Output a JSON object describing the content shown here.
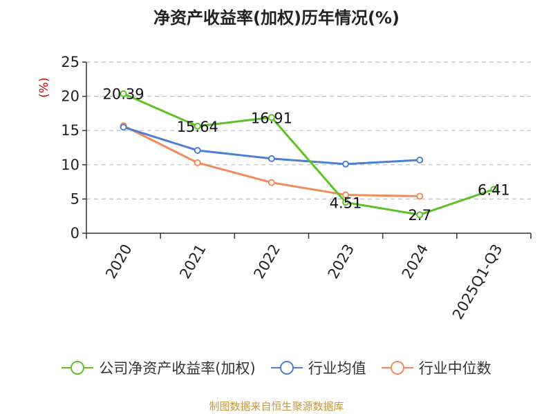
{
  "title": "净资产收益率(加权)历年情况(%)",
  "footer": "制图数据来自恒生聚源数据库",
  "chart_data": {
    "type": "line",
    "title": "净资产收益率(加权)历年情况(%)",
    "ylabel": "(%)",
    "xlabel": "",
    "ylim": [
      0,
      25
    ],
    "yticks": [
      0,
      5,
      10,
      15,
      20,
      25
    ],
    "grid": true,
    "legend_position": "bottom",
    "categories": [
      "2020",
      "2021",
      "2022",
      "2023",
      "2024",
      "2025Q1-Q3"
    ],
    "series": [
      {
        "name": "公司净资产收益率(加权)",
        "color": "#5cc125",
        "values": [
          20.39,
          15.64,
          16.91,
          4.51,
          2.7,
          6.41
        ],
        "labels": [
          "20.39",
          "15.64",
          "16.91",
          "4.51",
          "2.7",
          "6.41"
        ]
      },
      {
        "name": "行业均值",
        "color": "#4a7fd6",
        "values": [
          15.5,
          12.1,
          10.9,
          10.1,
          10.7,
          null
        ]
      },
      {
        "name": "行业中位数",
        "color": "#f08c5a",
        "values": [
          15.7,
          10.3,
          7.4,
          5.6,
          5.4,
          null
        ]
      }
    ]
  }
}
